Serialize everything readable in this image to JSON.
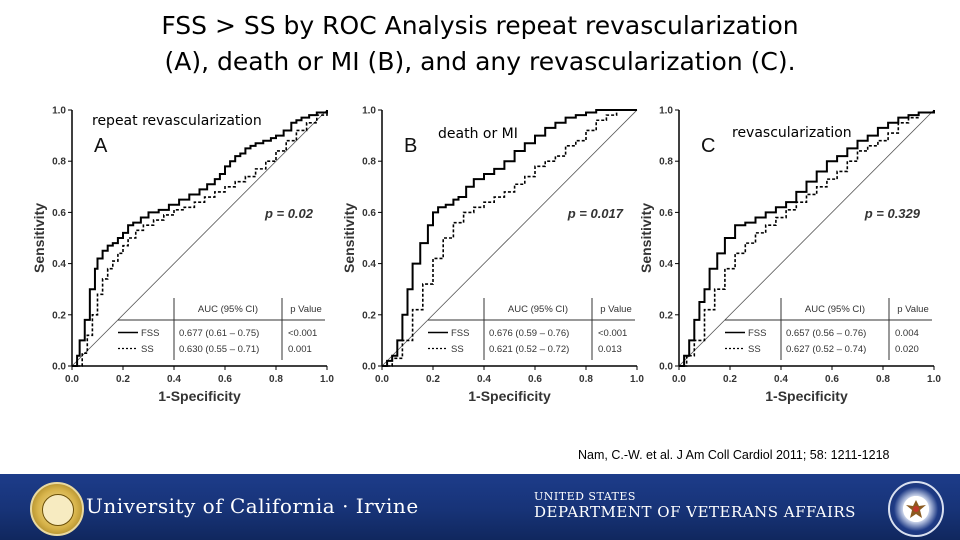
{
  "title_line1": "FSS > SS by ROC Analysis repeat revascularization",
  "title_line2": "(A), death or MI (B), and any revascularization (C).",
  "citation": "Nam, C.-W. et al. J Am Coll Cardiol 2011; 58: 1211-1218",
  "footer": {
    "left_logo_text": "University of California · Irvine",
    "right_logo_top": "UNITED STATES",
    "right_logo_bottom": "DEPARTMENT OF VETERANS AFFAIRS"
  },
  "colors": {
    "footer_bg": "#173377",
    "curve": "#000000",
    "reference": "#555555"
  },
  "chart_data": [
    {
      "type": "line",
      "overlay_label": "repeat revascularization",
      "panel_letter": "A",
      "xlabel": "1-Specificity",
      "ylabel": "Sensitivity",
      "xlim": [
        0,
        1
      ],
      "ylim": [
        0,
        1
      ],
      "xticks": [
        "0.0",
        "0.2",
        "0.4",
        "0.6",
        "0.8",
        "1.0"
      ],
      "yticks": [
        "0.0",
        "0.2",
        "0.4",
        "0.6",
        "0.8",
        "1.0"
      ],
      "p_value_text": "p = 0.02",
      "table": {
        "headers": [
          "AUC (95% CI)",
          "p Value"
        ],
        "rows": [
          {
            "name": "FSS",
            "auc": "0.677 (0.61 – 0.75)",
            "p": "<0.001"
          },
          {
            "name": "SS",
            "auc": "0.630 (0.55 – 0.71)",
            "p": "0.001"
          }
        ]
      },
      "series": [
        {
          "name": "FSS",
          "style": "solid",
          "x": [
            0,
            0.02,
            0.03,
            0.05,
            0.07,
            0.09,
            0.1,
            0.12,
            0.14,
            0.16,
            0.18,
            0.2,
            0.22,
            0.24,
            0.27,
            0.3,
            0.34,
            0.38,
            0.42,
            0.46,
            0.5,
            0.53,
            0.56,
            0.58,
            0.6,
            0.62,
            0.64,
            0.66,
            0.68,
            0.7,
            0.72,
            0.75,
            0.78,
            0.8,
            0.83,
            0.86,
            0.88,
            0.9,
            0.93,
            0.96,
            1.0
          ],
          "y": [
            0,
            0.04,
            0.1,
            0.18,
            0.3,
            0.38,
            0.42,
            0.45,
            0.47,
            0.48,
            0.5,
            0.52,
            0.55,
            0.56,
            0.58,
            0.6,
            0.61,
            0.63,
            0.65,
            0.67,
            0.69,
            0.71,
            0.73,
            0.75,
            0.78,
            0.8,
            0.82,
            0.83,
            0.85,
            0.86,
            0.87,
            0.88,
            0.89,
            0.9,
            0.92,
            0.95,
            0.96,
            0.97,
            0.98,
            0.99,
            1.0
          ]
        },
        {
          "name": "SS",
          "style": "dashed",
          "x": [
            0,
            0.04,
            0.06,
            0.08,
            0.1,
            0.12,
            0.14,
            0.16,
            0.18,
            0.2,
            0.22,
            0.25,
            0.28,
            0.32,
            0.36,
            0.4,
            0.44,
            0.48,
            0.52,
            0.56,
            0.6,
            0.64,
            0.68,
            0.72,
            0.76,
            0.8,
            0.84,
            0.88,
            0.92,
            0.96,
            1.0
          ],
          "y": [
            0,
            0.05,
            0.12,
            0.2,
            0.28,
            0.34,
            0.38,
            0.41,
            0.44,
            0.47,
            0.5,
            0.53,
            0.55,
            0.57,
            0.59,
            0.61,
            0.62,
            0.64,
            0.66,
            0.68,
            0.7,
            0.72,
            0.74,
            0.77,
            0.8,
            0.84,
            0.88,
            0.92,
            0.95,
            0.98,
            1.0
          ]
        }
      ]
    },
    {
      "type": "line",
      "overlay_label": "death or MI",
      "panel_letter": "B",
      "xlabel": "1-Specificity",
      "ylabel": "Sensitivity",
      "xlim": [
        0,
        1
      ],
      "ylim": [
        0,
        1
      ],
      "xticks": [
        "0.0",
        "0.2",
        "0.4",
        "0.6",
        "0.8",
        "1.0"
      ],
      "yticks": [
        "0.0",
        "0.2",
        "0.4",
        "0.6",
        "0.8",
        "1.0"
      ],
      "p_value_text": "p = 0.017",
      "table": {
        "headers": [
          "AUC (95% CI)",
          "p Value"
        ],
        "rows": [
          {
            "name": "FSS",
            "auc": "0.676 (0.59 – 0.76)",
            "p": "<0.001"
          },
          {
            "name": "SS",
            "auc": "0.621 (0.52 – 0.72)",
            "p": "0.013"
          }
        ]
      },
      "series": [
        {
          "name": "FSS",
          "style": "solid",
          "x": [
            0,
            0.02,
            0.04,
            0.06,
            0.08,
            0.1,
            0.12,
            0.15,
            0.18,
            0.2,
            0.22,
            0.25,
            0.28,
            0.3,
            0.33,
            0.36,
            0.4,
            0.44,
            0.48,
            0.52,
            0.56,
            0.6,
            0.64,
            0.68,
            0.72,
            0.76,
            0.8,
            0.84,
            0.88,
            0.92,
            0.96,
            1.0
          ],
          "y": [
            0,
            0.02,
            0.04,
            0.1,
            0.2,
            0.3,
            0.4,
            0.48,
            0.55,
            0.6,
            0.62,
            0.63,
            0.65,
            0.66,
            0.7,
            0.73,
            0.75,
            0.77,
            0.8,
            0.84,
            0.87,
            0.9,
            0.93,
            0.95,
            0.97,
            0.98,
            0.99,
            1.0,
            1.0,
            1.0,
            1.0,
            1.0
          ]
        },
        {
          "name": "SS",
          "style": "dashed",
          "x": [
            0,
            0.04,
            0.08,
            0.12,
            0.16,
            0.2,
            0.24,
            0.28,
            0.32,
            0.36,
            0.4,
            0.44,
            0.48,
            0.52,
            0.56,
            0.6,
            0.64,
            0.68,
            0.72,
            0.76,
            0.8,
            0.84,
            0.88,
            0.92,
            0.96,
            1.0
          ],
          "y": [
            0,
            0.03,
            0.1,
            0.22,
            0.32,
            0.42,
            0.5,
            0.56,
            0.6,
            0.62,
            0.64,
            0.66,
            0.68,
            0.71,
            0.74,
            0.78,
            0.8,
            0.82,
            0.86,
            0.88,
            0.92,
            0.96,
            0.98,
            1.0,
            1.0,
            1.0
          ]
        }
      ]
    },
    {
      "type": "line",
      "overlay_label": "revascularization",
      "panel_letter": "C",
      "xlabel": "1-Specificity",
      "ylabel": "Sensitivity",
      "xlim": [
        0,
        1
      ],
      "ylim": [
        0,
        1
      ],
      "xticks": [
        "0.0",
        "0.2",
        "0.4",
        "0.6",
        "0.8",
        "1.0"
      ],
      "yticks": [
        "0.0",
        "0.2",
        "0.4",
        "0.6",
        "0.8",
        "1.0"
      ],
      "p_value_text": "p = 0.329",
      "table": {
        "headers": [
          "AUC (95% CI)",
          "p Value"
        ],
        "rows": [
          {
            "name": "FSS",
            "auc": "0.657 (0.56 – 0.76)",
            "p": "0.004"
          },
          {
            "name": "SS",
            "auc": "0.627 (0.52 – 0.74)",
            "p": "0.020"
          }
        ]
      },
      "series": [
        {
          "name": "FSS",
          "style": "solid",
          "x": [
            0,
            0.02,
            0.04,
            0.06,
            0.08,
            0.1,
            0.12,
            0.15,
            0.18,
            0.22,
            0.26,
            0.3,
            0.34,
            0.38,
            0.42,
            0.46,
            0.5,
            0.54,
            0.58,
            0.62,
            0.66,
            0.7,
            0.74,
            0.78,
            0.82,
            0.86,
            0.9,
            0.94,
            1.0
          ],
          "y": [
            0,
            0.04,
            0.1,
            0.18,
            0.25,
            0.3,
            0.38,
            0.44,
            0.5,
            0.55,
            0.56,
            0.58,
            0.6,
            0.62,
            0.64,
            0.68,
            0.72,
            0.76,
            0.8,
            0.82,
            0.85,
            0.88,
            0.9,
            0.93,
            0.95,
            0.97,
            0.98,
            0.99,
            1.0
          ]
        },
        {
          "name": "SS",
          "style": "dashed",
          "x": [
            0,
            0.03,
            0.06,
            0.1,
            0.14,
            0.18,
            0.22,
            0.26,
            0.3,
            0.34,
            0.38,
            0.42,
            0.46,
            0.5,
            0.54,
            0.58,
            0.62,
            0.66,
            0.7,
            0.74,
            0.78,
            0.82,
            0.86,
            0.9,
            0.94,
            1.0
          ],
          "y": [
            0,
            0.04,
            0.1,
            0.22,
            0.3,
            0.38,
            0.44,
            0.48,
            0.52,
            0.55,
            0.58,
            0.61,
            0.64,
            0.67,
            0.7,
            0.73,
            0.76,
            0.8,
            0.84,
            0.86,
            0.88,
            0.91,
            0.95,
            0.97,
            0.99,
            1.0
          ]
        }
      ]
    }
  ]
}
